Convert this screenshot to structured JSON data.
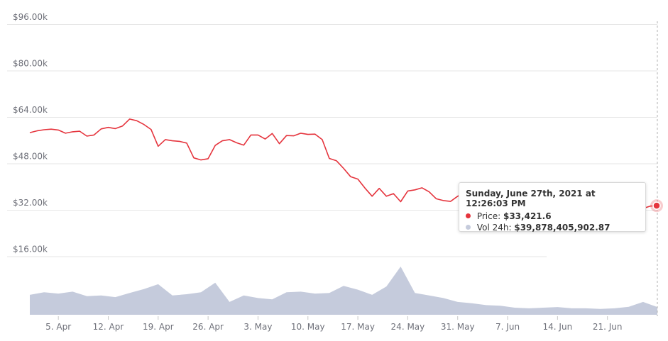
{
  "chart_data": {
    "type": "line",
    "y_ticks": [
      "$16.00k",
      "$32.00k",
      "$48.00k",
      "$64.00k",
      "$80.00k",
      "$96.00k"
    ],
    "y_tick_values": [
      16000,
      32000,
      48000,
      64000,
      80000,
      96000
    ],
    "ylim": [
      0,
      96000
    ],
    "x_ticks": [
      "5. Apr",
      "12. Apr",
      "19. Apr",
      "26. Apr",
      "3. May",
      "10. May",
      "17. May",
      "24. May",
      "31. May",
      "7. Jun",
      "14. Jun",
      "21. Jun"
    ],
    "x_start_day": 1,
    "x_end_day": 89,
    "x_start_label_day": 5,
    "series": [
      {
        "name": "Price",
        "color": "#e5343d",
        "x_day": [
          1,
          2,
          3,
          4,
          5,
          6,
          7,
          8,
          9,
          10,
          11,
          12,
          13,
          14,
          15,
          16,
          17,
          18,
          19,
          20,
          21,
          22,
          23,
          24,
          25,
          26,
          27,
          28,
          29,
          30,
          31,
          32,
          33,
          34,
          35,
          36,
          37,
          38,
          39,
          40,
          41,
          42,
          43,
          44,
          45,
          46,
          47,
          48,
          49,
          50,
          51,
          52,
          53,
          54,
          55,
          56,
          57,
          58,
          59,
          60,
          61,
          62,
          63,
          64,
          65,
          66,
          67,
          68,
          69,
          70,
          71,
          72,
          73,
          74,
          75,
          76,
          77,
          78,
          79,
          80,
          81,
          82,
          83,
          84,
          85,
          86,
          87,
          88,
          89
        ],
        "values": [
          58600,
          59200,
          59600,
          59800,
          59500,
          58400,
          58900,
          59100,
          57400,
          57800,
          59900,
          60400,
          60000,
          60900,
          63300,
          62700,
          61400,
          59700,
          53900,
          56200,
          55800,
          55600,
          55000,
          49900,
          49200,
          49600,
          54200,
          55800,
          56200,
          55100,
          54300,
          57800,
          57800,
          56400,
          58300,
          54800,
          57600,
          57500,
          58400,
          58000,
          58100,
          56200,
          49700,
          48900,
          46300,
          43400,
          42600,
          39500,
          36700,
          39400,
          36700,
          37600,
          34800,
          38500,
          38900,
          39600,
          38200,
          35800,
          35200,
          34900,
          36700,
          37600,
          39200,
          39300,
          37000,
          35900,
          36500,
          37200,
          35800,
          35300,
          35800,
          37300,
          38600,
          39000,
          38900,
          37600,
          35800,
          35200,
          35100,
          35800,
          35600,
          33600,
          32100,
          34900,
          34800,
          31800,
          32500,
          33300,
          33421.6
        ]
      },
      {
        "name": "Vol 24h",
        "color": "#c5cbdc",
        "x_day": [
          1,
          3,
          5,
          7,
          9,
          11,
          13,
          15,
          17,
          19,
          21,
          23,
          25,
          27,
          29,
          31,
          33,
          35,
          37,
          39,
          41,
          43,
          45,
          47,
          49,
          51,
          53,
          55,
          57,
          59,
          61,
          63,
          65,
          67,
          69,
          71,
          73,
          75,
          77,
          79,
          81,
          83,
          85,
          87,
          89
        ],
        "values": [
          62,
          70,
          66,
          72,
          58,
          60,
          55,
          68,
          80,
          95,
          60,
          64,
          70,
          100,
          40,
          60,
          52,
          48,
          70,
          72,
          66,
          68,
          90,
          78,
          62,
          88,
          150,
          68,
          60,
          52,
          40,
          36,
          30,
          28,
          22,
          20,
          22,
          24,
          20,
          20,
          18,
          20,
          25,
          40,
          24
        ]
      }
    ],
    "tooltip": {
      "date": "Sunday, June 27th, 2021 at 12:26:03 PM",
      "price_label": "Price:",
      "price_value": "$33,421.6",
      "volume_label": "Vol 24h:",
      "volume_value": "$39,878,405,902.87"
    },
    "grid": true
  }
}
